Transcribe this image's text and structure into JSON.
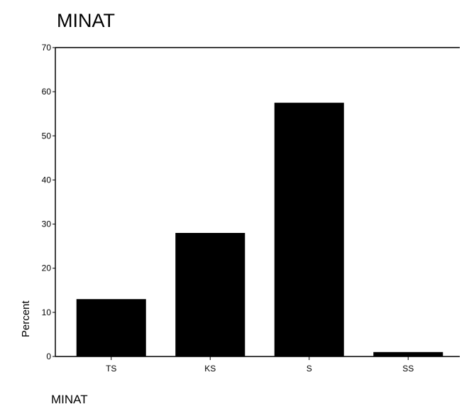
{
  "chart_data": {
    "type": "bar",
    "title": "MINAT",
    "xlabel": "MINAT",
    "ylabel": "Percent",
    "categories": [
      "TS",
      "KS",
      "S",
      "SS"
    ],
    "values": [
      13,
      28,
      57.5,
      1
    ],
    "ylim": [
      0,
      70
    ],
    "yticks": [
      0,
      10,
      20,
      30,
      40,
      50,
      60,
      70
    ],
    "grid": false,
    "bar_color": "#000000"
  }
}
